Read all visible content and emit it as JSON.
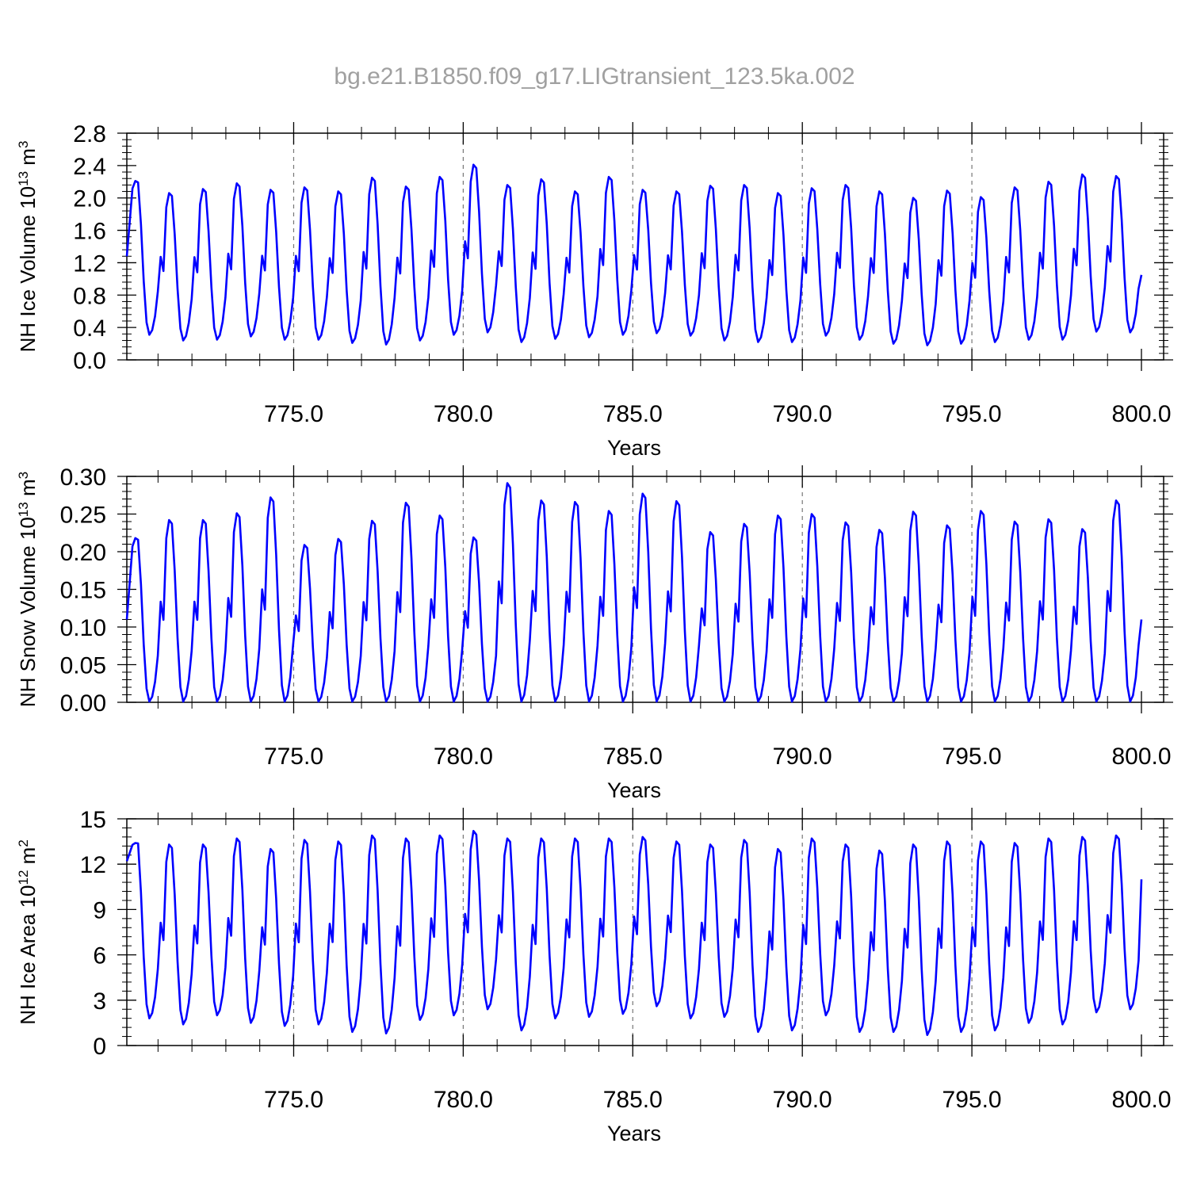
{
  "title": "bg.e21.B1850.f09_g17.LIGtransient_123.5ka.002",
  "chart_data": [
    {
      "type": "line",
      "ylabel": "NH Ice Volume 10",
      "ylabel_exp": "13",
      "ylabel_unit": " m",
      "ylabel_unit_exp": "3",
      "xlabel": "Years",
      "xlim": [
        770.08,
        800.0
      ],
      "ylim": [
        0.0,
        2.8
      ],
      "yticks": [
        0.0,
        0.4,
        0.8,
        1.2,
        1.6,
        2.0,
        2.4,
        2.8
      ],
      "ytick_labels": [
        "0.0",
        "0.4",
        "0.8",
        "1.2",
        "1.6",
        "2.0",
        "2.4",
        "2.8"
      ],
      "xticks": [
        775.0,
        780.0,
        785.0,
        790.0,
        795.0,
        800.0
      ],
      "xtick_labels": [
        "775.0",
        "780.0",
        "785.0",
        "790.0",
        "795.0",
        "800.0"
      ],
      "vgrid": [
        775.0,
        780.0,
        785.0,
        790.0,
        795.0
      ],
      "line_color": "#0000ff",
      "first_value": 1.28,
      "last_value": 1.05,
      "series": [
        {
          "peaks": [
            2.21,
            2.06,
            2.11,
            2.18,
            2.1,
            2.13,
            2.08,
            2.25,
            2.14,
            2.26,
            2.41,
            2.16,
            2.23,
            2.08,
            2.26,
            2.1,
            2.08,
            2.15,
            2.16,
            2.06,
            2.12,
            2.16,
            2.08,
            2.0,
            2.09,
            2.01,
            2.13,
            2.2,
            2.29,
            2.27
          ],
          "troughs": [
            0.31,
            0.24,
            0.25,
            0.29,
            0.25,
            0.25,
            0.21,
            0.19,
            0.24,
            0.31,
            0.34,
            0.22,
            0.26,
            0.28,
            0.31,
            0.33,
            0.3,
            0.24,
            0.22,
            0.22,
            0.3,
            0.25,
            0.2,
            0.18,
            0.2,
            0.22,
            0.25,
            0.25,
            0.35,
            0.34
          ]
        }
      ]
    },
    {
      "type": "line",
      "ylabel": "NH Snow Volume 10",
      "ylabel_exp": "13",
      "ylabel_unit": " m",
      "ylabel_unit_exp": "3",
      "xlabel": "Years",
      "xlim": [
        770.08,
        800.0
      ],
      "ylim": [
        0.0,
        0.3
      ],
      "yticks": [
        0.0,
        0.05,
        0.1,
        0.15,
        0.2,
        0.25,
        0.3
      ],
      "ytick_labels": [
        "0.00",
        "0.05",
        "0.10",
        "0.15",
        "0.20",
        "0.25",
        "0.30"
      ],
      "xticks": [
        775.0,
        780.0,
        785.0,
        790.0,
        795.0,
        800.0
      ],
      "xtick_labels": [
        "775.0",
        "780.0",
        "785.0",
        "790.0",
        "795.0",
        "800.0"
      ],
      "vgrid": [
        775.0,
        780.0,
        785.0,
        790.0,
        795.0
      ],
      "line_color": "#0000ff",
      "first_value": 0.11,
      "last_value": 0.11,
      "series": [
        {
          "peaks": [
            0.218,
            0.242,
            0.242,
            0.251,
            0.272,
            0.209,
            0.217,
            0.241,
            0.265,
            0.248,
            0.219,
            0.291,
            0.268,
            0.266,
            0.254,
            0.277,
            0.267,
            0.226,
            0.237,
            0.248,
            0.25,
            0.239,
            0.229,
            0.253,
            0.235,
            0.254,
            0.24,
            0.243,
            0.23,
            0.268
          ],
          "troughs": [
            0.001,
            0.001,
            0.001,
            0.001,
            0.001,
            0.001,
            0.001,
            0.001,
            0.001,
            0.001,
            0.001,
            0.001,
            0.001,
            0.001,
            0.001,
            0.001,
            0.001,
            0.001,
            0.001,
            0.001,
            0.001,
            0.001,
            0.001,
            0.001,
            0.001,
            0.001,
            0.001,
            0.001,
            0.001,
            0.001
          ]
        }
      ]
    },
    {
      "type": "line",
      "ylabel": "NH Ice Area 10",
      "ylabel_exp": "12",
      "ylabel_unit": " m",
      "ylabel_unit_exp": "2",
      "xlabel": "Years",
      "xlim": [
        770.08,
        800.0
      ],
      "ylim": [
        0,
        15
      ],
      "yticks": [
        0,
        3,
        6,
        9,
        12,
        15
      ],
      "ytick_labels": [
        "0",
        "3",
        "6",
        "9",
        "12",
        "15"
      ],
      "xticks": [
        775.0,
        780.0,
        785.0,
        790.0,
        795.0,
        800.0
      ],
      "xtick_labels": [
        "775.0",
        "780.0",
        "785.0",
        "790.0",
        "795.0",
        "800.0"
      ],
      "vgrid": [
        775.0,
        780.0,
        785.0,
        790.0,
        795.0
      ],
      "line_color": "#0000ff",
      "first_value": 12.2,
      "last_value": 11.0,
      "series": [
        {
          "peaks": [
            13.4,
            13.3,
            13.3,
            13.7,
            13.0,
            13.6,
            13.5,
            13.9,
            13.7,
            13.9,
            14.2,
            13.7,
            13.7,
            13.7,
            13.7,
            13.8,
            13.5,
            13.3,
            13.6,
            13.0,
            13.7,
            13.3,
            12.9,
            13.3,
            13.5,
            13.5,
            13.4,
            13.7,
            13.8,
            13.9
          ],
          "troughs": [
            1.8,
            1.4,
            2.0,
            1.5,
            1.3,
            1.4,
            0.9,
            0.8,
            1.7,
            2.0,
            2.4,
            1.0,
            1.8,
            1.9,
            2.1,
            2.6,
            1.8,
            1.9,
            0.9,
            1.0,
            2.0,
            0.9,
            0.9,
            0.7,
            0.9,
            1.0,
            1.5,
            1.4,
            2.2,
            2.4
          ]
        }
      ]
    }
  ]
}
